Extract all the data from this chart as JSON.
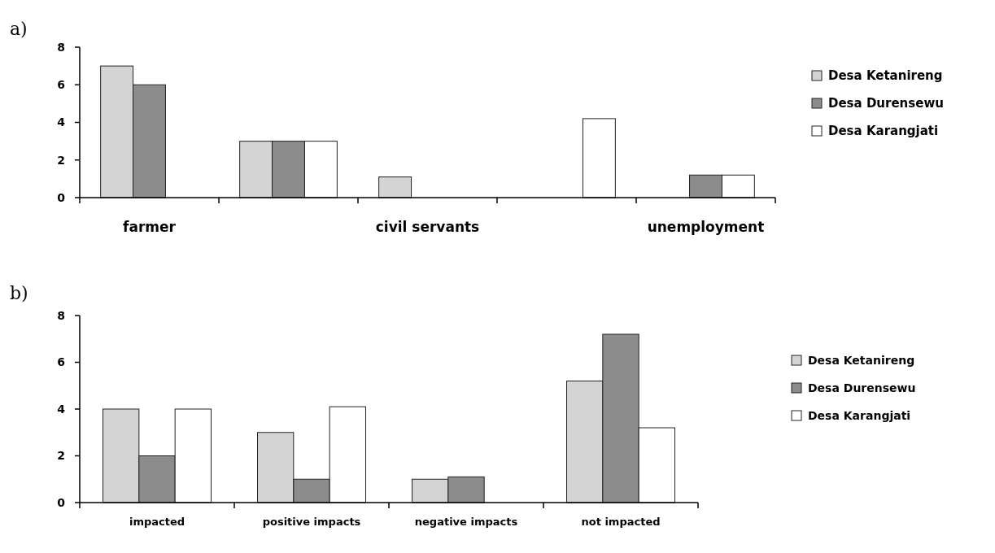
{
  "chart_data": [
    {
      "type": "bar",
      "title": "a)",
      "categories": [
        "farmer",
        null,
        "civil servants",
        null,
        "unemployment"
      ],
      "series": [
        {
          "name": "Desa Ketanireng",
          "color": "#d4d4d4",
          "values": [
            7,
            3,
            1.1,
            0,
            0
          ]
        },
        {
          "name": "Desa Durensewu",
          "color": "#8c8c8c",
          "values": [
            6,
            3,
            0,
            0,
            1.2
          ]
        },
        {
          "name": "Desa Karangjati",
          "color": "#ffffff",
          "values": [
            0,
            3,
            0,
            4.2,
            1.2
          ]
        }
      ],
      "ylim": [
        0,
        8
      ],
      "yticks": [
        0,
        2,
        4,
        6,
        8
      ],
      "grid": false,
      "legend": "right"
    },
    {
      "type": "bar",
      "title": "b)",
      "categories": [
        "impacted",
        "positive impacts",
        "negative impacts",
        "not impacted"
      ],
      "series": [
        {
          "name": "Desa Ketanireng",
          "color": "#d4d4d4",
          "values": [
            4,
            3,
            1,
            5.2
          ]
        },
        {
          "name": "Desa Durensewu",
          "color": "#8c8c8c",
          "values": [
            2,
            1,
            1.1,
            7.2
          ]
        },
        {
          "name": "Desa Karangjati",
          "color": "#ffffff",
          "values": [
            4,
            4.1,
            0,
            3.2
          ]
        }
      ],
      "ylim": [
        0,
        8
      ],
      "yticks": [
        0,
        2,
        4,
        6,
        8
      ],
      "grid": false,
      "legend": "right"
    }
  ]
}
